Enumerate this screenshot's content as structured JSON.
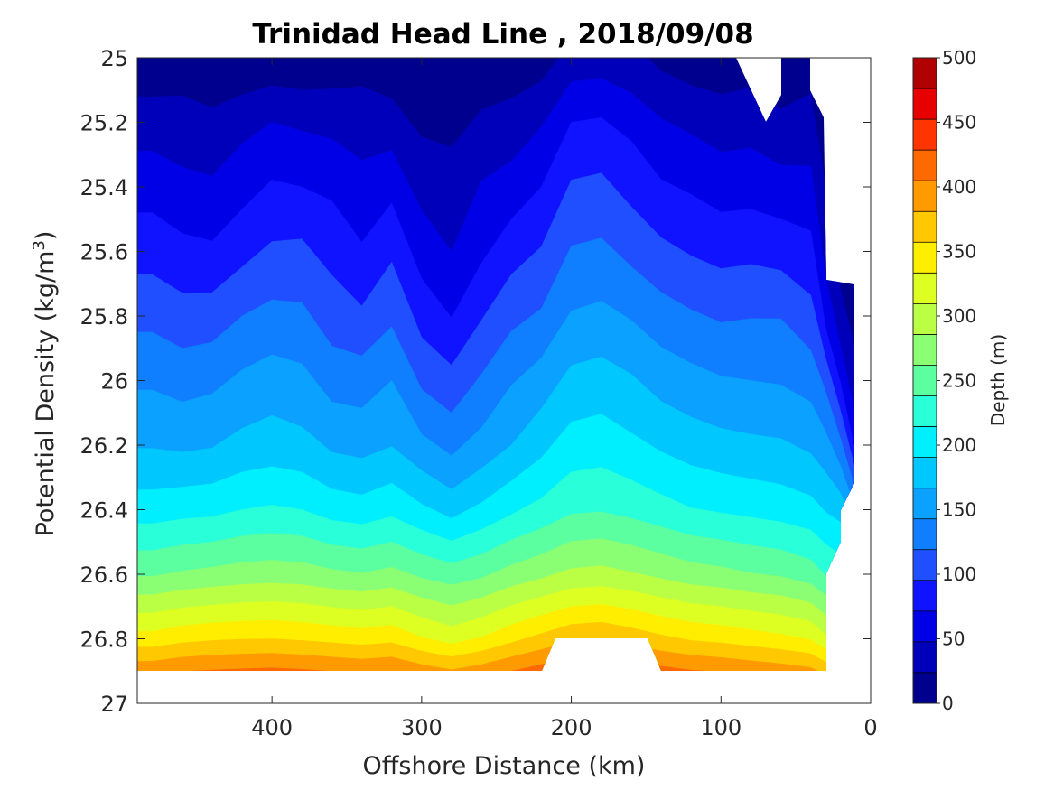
{
  "chart_data": {
    "type": "contour",
    "title": "Trinidad Head Line , 2018/09/08",
    "xlabel": "Offshore Distance (km)",
    "ylabel": {
      "main": "Potential Density (kg/m",
      "sup": "3",
      "tail": ")"
    },
    "xlim": [
      490,
      0
    ],
    "ylim": [
      25,
      27
    ],
    "x_reversed": true,
    "y_reversed": true,
    "xticks": [
      400,
      300,
      200,
      100,
      0
    ],
    "yticks": [
      "25",
      "25.2",
      "25.4",
      "25.6",
      "25.8",
      "26",
      "26.2",
      "26.4",
      "26.6",
      "26.8",
      "27"
    ],
    "colorbar": {
      "label": "Depth (m)",
      "range": [
        0,
        500
      ],
      "step": 25,
      "ticks": [
        0,
        50,
        100,
        150,
        200,
        250,
        300,
        350,
        400,
        450,
        500
      ]
    },
    "contour_levels": [
      0,
      25,
      50,
      75,
      100,
      125,
      150,
      175,
      200,
      225,
      250,
      275,
      300,
      325,
      350,
      375,
      400,
      425,
      450,
      475,
      500
    ],
    "colormap": [
      "#00008f",
      "#0000bb",
      "#0000e6",
      "#0f13ff",
      "#1f4fff",
      "#0f7eff",
      "#0aa1ff",
      "#00c8ff",
      "#00efff",
      "#29ffd8",
      "#5bff9f",
      "#8bff74",
      "#bbff44",
      "#ddff22",
      "#ffee00",
      "#ffc800",
      "#ff9b00",
      "#ff6a00",
      "#ff3500",
      "#e60000",
      "#b00000"
    ],
    "stations": {
      "x": [
        480,
        460,
        440,
        420,
        400,
        380,
        360,
        340,
        320,
        300,
        280,
        260,
        240,
        220,
        200,
        180,
        160,
        140,
        120,
        100,
        80,
        60,
        40,
        30,
        20,
        10
      ],
      "depth_m": [
        [
          5,
          12,
          8,
          2,
          6,
          4,
          8,
          13,
          6,
          2,
          3,
          4,
          8,
          12,
          35,
          37,
          28,
          18,
          10,
          8,
          12,
          6,
          15,
          12,
          5,
          2
        ],
        [
          38,
          34,
          30,
          42,
          50,
          46,
          43,
          40,
          36,
          20,
          18,
          30,
          35,
          48,
          75,
          78,
          68,
          52,
          45,
          38,
          40,
          30,
          33,
          18,
          8,
          4
        ],
        [
          65,
          57,
          54,
          66,
          78,
          75,
          70,
          57,
          68,
          42,
          36,
          52,
          60,
          75,
          103,
          106,
          92,
          78,
          72,
          64,
          65,
          60,
          58,
          25,
          12,
          6
        ],
        [
          90,
          82,
          79,
          92,
          104,
          106,
          93,
          78,
          96,
          64,
          50,
          70,
          90,
          102,
          127,
          130,
          118,
          106,
          98,
          92,
          94,
          90,
          83,
          40,
          18,
          10
        ],
        [
          118,
          110,
          112,
          125,
          132,
          130,
          112,
          104,
          120,
          90,
          74,
          98,
          118,
          128,
          152,
          156,
          148,
          136,
          128,
          122,
          124,
          124,
          108,
          65,
          30,
          15
        ],
        [
          146,
          140,
          144,
          155,
          162,
          157,
          140,
          138,
          150,
          120,
          108,
          128,
          148,
          162,
          182,
          186,
          178,
          165,
          158,
          152,
          150,
          148,
          140,
          118,
          72,
          32
        ],
        [
          173,
          170,
          173,
          182,
          186,
          182,
          170,
          166,
          174,
          156,
          142,
          158,
          175,
          192,
          210,
          213,
          205,
          196,
          188,
          183,
          180,
          178,
          170,
          158,
          130,
          65
        ],
        [
          212,
          216,
          218,
          225,
          228,
          225,
          214,
          210,
          218,
          204,
          190,
          205,
          220,
          232,
          246,
          248,
          242,
          234,
          226,
          222,
          218,
          214,
          208,
          198,
          190,
          150
        ],
        [
          272,
          278,
          282,
          286,
          288,
          286,
          280,
          276,
          282,
          270,
          262,
          270,
          284,
          294,
          305,
          308,
          302,
          294,
          286,
          282,
          276,
          272,
          262,
          248,
          240,
          230
        ],
        [
          360,
          368,
          372,
          374,
          375,
          372,
          368,
          364,
          368,
          352,
          340,
          352,
          368,
          382,
          395,
          398,
          390,
          380,
          372,
          368,
          362,
          356,
          348,
          330,
          310,
          300
        ],
        [
          475,
          480,
          482,
          484,
          486,
          484,
          481,
          478,
          481,
          472,
          465,
          472,
          482,
          490,
          498,
          498,
          494,
          486,
          482,
          478,
          474,
          470,
          465,
          455,
          440,
          430
        ]
      ]
    },
    "data_extent": {
      "x_min": 30,
      "y_max": 26.9,
      "notes": "white (no data) in the notch near sigma 26.8-26.9 between 220 and 140 km, along the inshore edge, and in the top-right corner"
    }
  }
}
